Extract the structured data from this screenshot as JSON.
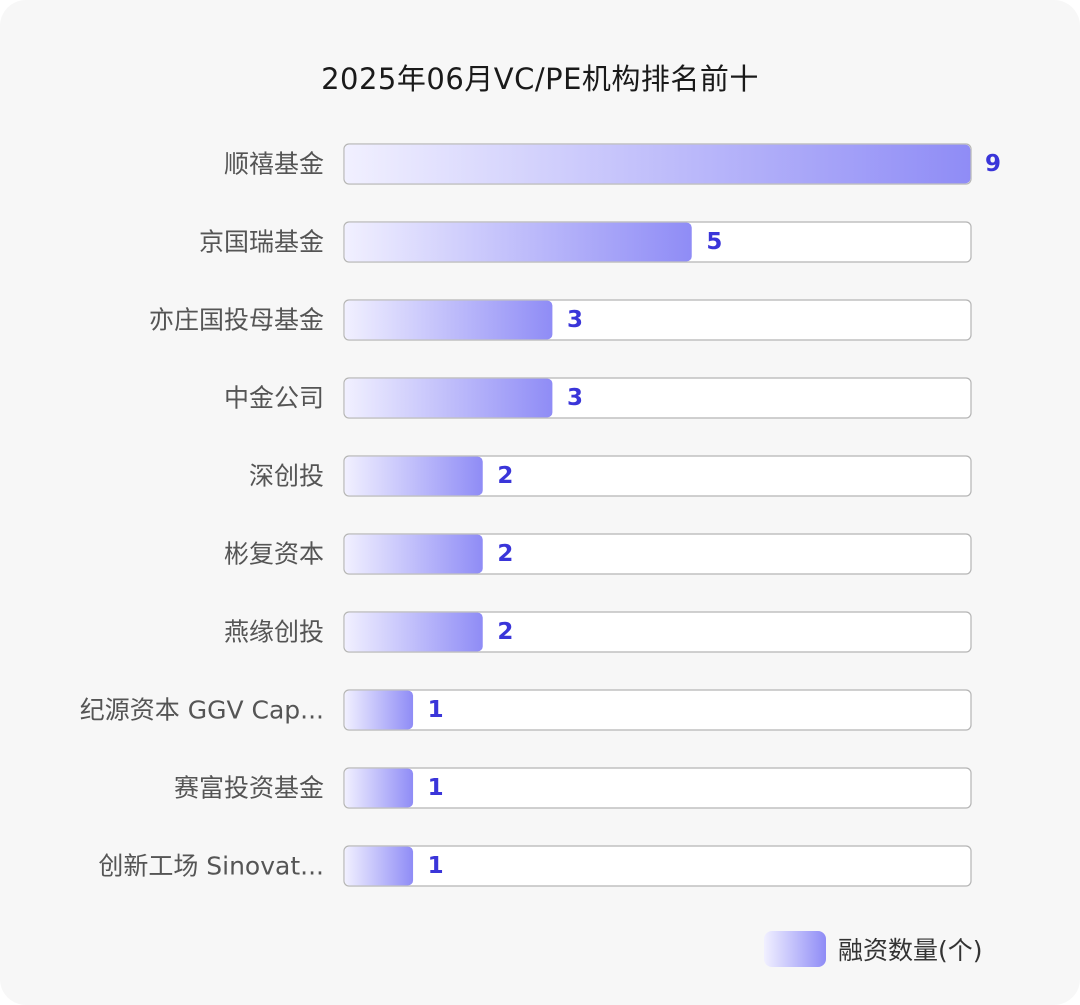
{
  "chart_data": {
    "type": "bar",
    "orientation": "horizontal",
    "title": "2025年06月VC/PE机构排名前十",
    "categories": [
      "顺禧基金",
      "京国瑞基金",
      "亦庄国投母基金",
      "中金公司",
      "深创投",
      "彬复资本",
      "燕缘创投",
      "纪源资本 GGV Cap...",
      "赛富投资基金",
      "创新工场 Sinovat..."
    ],
    "series": [
      {
        "name": "融资数量(个)",
        "values": [
          9,
          5,
          3,
          3,
          2,
          2,
          2,
          1,
          1,
          1
        ]
      }
    ],
    "xlim": [
      0,
      9
    ],
    "legend_position": "bottom-right",
    "grid": false
  },
  "colors": {
    "bar_start": "#f1f0ff",
    "bar_end": "#8f8cf6",
    "value_label": "#3a35d9",
    "track_border": "#b5b5b5"
  }
}
